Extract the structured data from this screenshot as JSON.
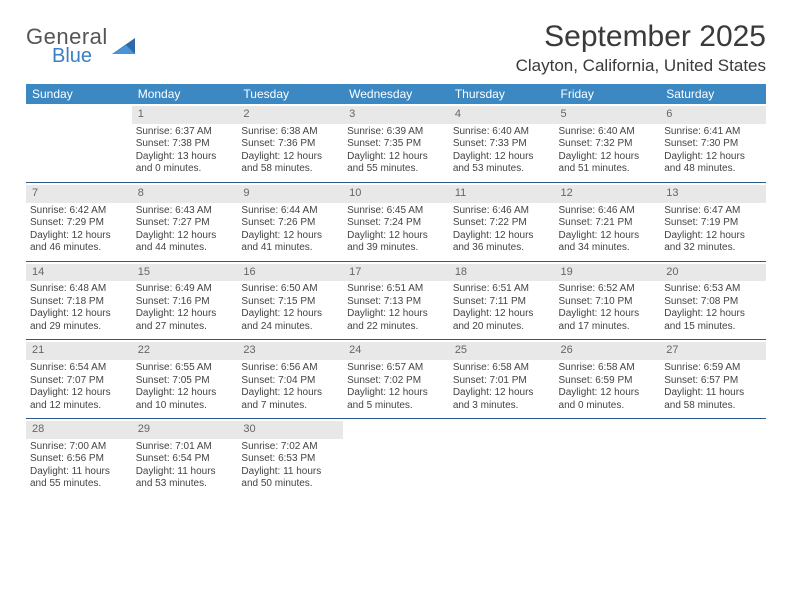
{
  "logo": {
    "word1": "General",
    "word2": "Blue",
    "brand_color": "#3b7fc4"
  },
  "title": "September 2025",
  "location": "Clayton, California, United States",
  "colors": {
    "header_bg": "#3b88c3",
    "header_text": "#ffffff",
    "daynum_bg": "#e8e8e8",
    "daynum_text": "#666666",
    "row_divider": "#2c5a88",
    "body_text": "#444444",
    "page_bg": "#ffffff"
  },
  "weekdays": [
    "Sunday",
    "Monday",
    "Tuesday",
    "Wednesday",
    "Thursday",
    "Friday",
    "Saturday"
  ],
  "start_weekday": 1,
  "days": [
    {
      "n": 1,
      "sunrise": "6:37 AM",
      "sunset": "7:38 PM",
      "daylight": "13 hours and 0 minutes."
    },
    {
      "n": 2,
      "sunrise": "6:38 AM",
      "sunset": "7:36 PM",
      "daylight": "12 hours and 58 minutes."
    },
    {
      "n": 3,
      "sunrise": "6:39 AM",
      "sunset": "7:35 PM",
      "daylight": "12 hours and 55 minutes."
    },
    {
      "n": 4,
      "sunrise": "6:40 AM",
      "sunset": "7:33 PM",
      "daylight": "12 hours and 53 minutes."
    },
    {
      "n": 5,
      "sunrise": "6:40 AM",
      "sunset": "7:32 PM",
      "daylight": "12 hours and 51 minutes."
    },
    {
      "n": 6,
      "sunrise": "6:41 AM",
      "sunset": "7:30 PM",
      "daylight": "12 hours and 48 minutes."
    },
    {
      "n": 7,
      "sunrise": "6:42 AM",
      "sunset": "7:29 PM",
      "daylight": "12 hours and 46 minutes."
    },
    {
      "n": 8,
      "sunrise": "6:43 AM",
      "sunset": "7:27 PM",
      "daylight": "12 hours and 44 minutes."
    },
    {
      "n": 9,
      "sunrise": "6:44 AM",
      "sunset": "7:26 PM",
      "daylight": "12 hours and 41 minutes."
    },
    {
      "n": 10,
      "sunrise": "6:45 AM",
      "sunset": "7:24 PM",
      "daylight": "12 hours and 39 minutes."
    },
    {
      "n": 11,
      "sunrise": "6:46 AM",
      "sunset": "7:22 PM",
      "daylight": "12 hours and 36 minutes."
    },
    {
      "n": 12,
      "sunrise": "6:46 AM",
      "sunset": "7:21 PM",
      "daylight": "12 hours and 34 minutes."
    },
    {
      "n": 13,
      "sunrise": "6:47 AM",
      "sunset": "7:19 PM",
      "daylight": "12 hours and 32 minutes."
    },
    {
      "n": 14,
      "sunrise": "6:48 AM",
      "sunset": "7:18 PM",
      "daylight": "12 hours and 29 minutes."
    },
    {
      "n": 15,
      "sunrise": "6:49 AM",
      "sunset": "7:16 PM",
      "daylight": "12 hours and 27 minutes."
    },
    {
      "n": 16,
      "sunrise": "6:50 AM",
      "sunset": "7:15 PM",
      "daylight": "12 hours and 24 minutes."
    },
    {
      "n": 17,
      "sunrise": "6:51 AM",
      "sunset": "7:13 PM",
      "daylight": "12 hours and 22 minutes."
    },
    {
      "n": 18,
      "sunrise": "6:51 AM",
      "sunset": "7:11 PM",
      "daylight": "12 hours and 20 minutes."
    },
    {
      "n": 19,
      "sunrise": "6:52 AM",
      "sunset": "7:10 PM",
      "daylight": "12 hours and 17 minutes."
    },
    {
      "n": 20,
      "sunrise": "6:53 AM",
      "sunset": "7:08 PM",
      "daylight": "12 hours and 15 minutes."
    },
    {
      "n": 21,
      "sunrise": "6:54 AM",
      "sunset": "7:07 PM",
      "daylight": "12 hours and 12 minutes."
    },
    {
      "n": 22,
      "sunrise": "6:55 AM",
      "sunset": "7:05 PM",
      "daylight": "12 hours and 10 minutes."
    },
    {
      "n": 23,
      "sunrise": "6:56 AM",
      "sunset": "7:04 PM",
      "daylight": "12 hours and 7 minutes."
    },
    {
      "n": 24,
      "sunrise": "6:57 AM",
      "sunset": "7:02 PM",
      "daylight": "12 hours and 5 minutes."
    },
    {
      "n": 25,
      "sunrise": "6:58 AM",
      "sunset": "7:01 PM",
      "daylight": "12 hours and 3 minutes."
    },
    {
      "n": 26,
      "sunrise": "6:58 AM",
      "sunset": "6:59 PM",
      "daylight": "12 hours and 0 minutes."
    },
    {
      "n": 27,
      "sunrise": "6:59 AM",
      "sunset": "6:57 PM",
      "daylight": "11 hours and 58 minutes."
    },
    {
      "n": 28,
      "sunrise": "7:00 AM",
      "sunset": "6:56 PM",
      "daylight": "11 hours and 55 minutes."
    },
    {
      "n": 29,
      "sunrise": "7:01 AM",
      "sunset": "6:54 PM",
      "daylight": "11 hours and 53 minutes."
    },
    {
      "n": 30,
      "sunrise": "7:02 AM",
      "sunset": "6:53 PM",
      "daylight": "11 hours and 50 minutes."
    }
  ],
  "labels": {
    "sunrise": "Sunrise:",
    "sunset": "Sunset:",
    "daylight": "Daylight:"
  }
}
